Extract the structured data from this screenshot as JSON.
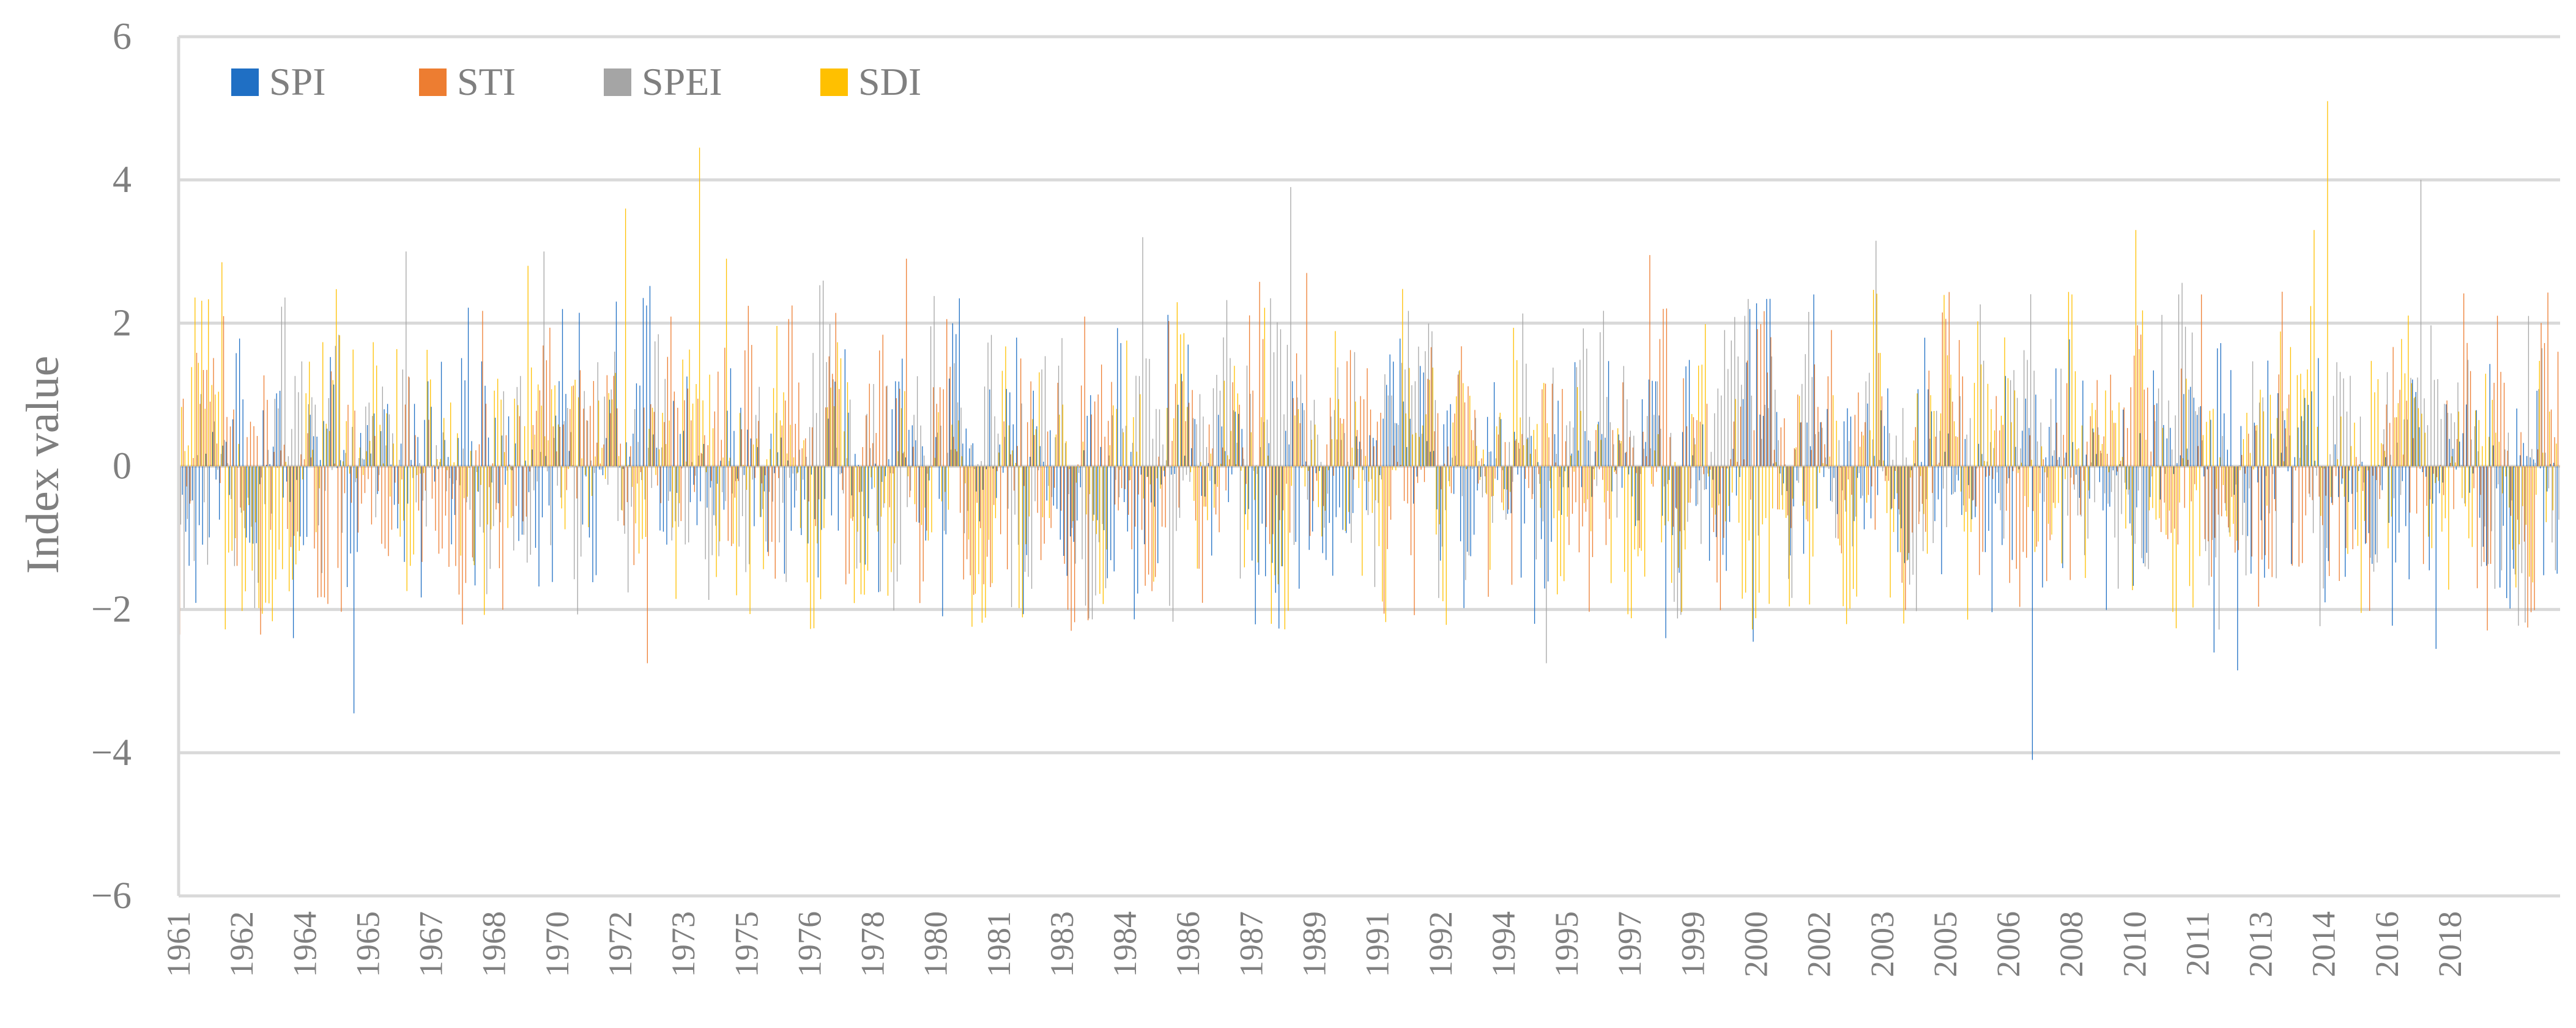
{
  "chart_data": {
    "type": "bar",
    "ylabel": "Index value",
    "ylim": [
      -6,
      6
    ],
    "yticks": [
      6,
      4,
      2,
      0,
      -2,
      -4,
      -6
    ],
    "ytick_labels": [
      "6",
      "4",
      "2",
      "0",
      "−2",
      "−4",
      "−6"
    ],
    "x_start": 1961,
    "x_end": 2020,
    "xtick_labels": [
      "1961",
      "1962",
      "1964",
      "1965",
      "1967",
      "1968",
      "1970",
      "1972",
      "1973",
      "1975",
      "1976",
      "1978",
      "1980",
      "1981",
      "1983",
      "1984",
      "1986",
      "1987",
      "1989",
      "1991",
      "1992",
      "1994",
      "1995",
      "1997",
      "1999",
      "2000",
      "2002",
      "2003",
      "2005",
      "2006",
      "2008",
      "2010",
      "2011",
      "2013",
      "2014",
      "2016",
      "2018"
    ],
    "grid": true,
    "legend_position": "top-left",
    "series": [
      {
        "name": "SPI",
        "color": "#1f6fc4",
        "notable": [
          {
            "x": 1961.0,
            "y": 1.75
          },
          {
            "x": 1965.3,
            "y": -3.45
          },
          {
            "x": 1963.8,
            "y": -2.4
          },
          {
            "x": 1971.8,
            "y": 2.3
          },
          {
            "x": 1976.0,
            "y": -1.5
          },
          {
            "x": 1986.0,
            "y": 1.7
          },
          {
            "x": 1994.6,
            "y": -2.2
          },
          {
            "x": 1997.8,
            "y": -2.4
          },
          {
            "x": 2000.0,
            "y": -2.45
          },
          {
            "x": 2001.5,
            "y": 2.4
          },
          {
            "x": 2006.9,
            "y": -4.1
          },
          {
            "x": 2011.4,
            "y": -2.6
          },
          {
            "x": 2012.0,
            "y": -2.85
          },
          {
            "x": 2014.2,
            "y": -1.9
          },
          {
            "x": 2016.9,
            "y": -2.55
          },
          {
            "x": 2020.3,
            "y": -1.5
          }
        ]
      },
      {
        "name": "STI",
        "color": "#ed7d31",
        "notable": [
          {
            "x": 1961.0,
            "y": -2.35
          },
          {
            "x": 1963.0,
            "y": -2.35
          },
          {
            "x": 1972.6,
            "y": -2.75
          },
          {
            "x": 1979.0,
            "y": 2.9
          },
          {
            "x": 1983.5,
            "y": -2.15
          },
          {
            "x": 1988.9,
            "y": 2.7
          },
          {
            "x": 1997.4,
            "y": 2.95
          },
          {
            "x": 2011.1,
            "y": 2.4
          },
          {
            "x": 2020.2,
            "y": 1.6
          }
        ]
      },
      {
        "name": "SPEI",
        "color": "#a5a5a5",
        "notable": [
          {
            "x": 1966.6,
            "y": 3.0
          },
          {
            "x": 1970.0,
            "y": 3.0
          },
          {
            "x": 1984.8,
            "y": 3.2
          },
          {
            "x": 1988.5,
            "y": 3.9
          },
          {
            "x": 1994.8,
            "y": -2.75
          },
          {
            "x": 2003.0,
            "y": 3.15
          },
          {
            "x": 2016.5,
            "y": 4.0
          },
          {
            "x": 2019.2,
            "y": 2.1
          }
        ]
      },
      {
        "name": "SDI",
        "color": "#ffc000",
        "notable": [
          {
            "x": 1962.0,
            "y": 2.85
          },
          {
            "x": 1969.6,
            "y": 2.8
          },
          {
            "x": 1972.0,
            "y": 3.6
          },
          {
            "x": 1973.8,
            "y": 4.45
          },
          {
            "x": 1974.5,
            "y": 2.9
          },
          {
            "x": 1988.0,
            "y": -2.2
          },
          {
            "x": 2009.4,
            "y": 3.3
          },
          {
            "x": 2013.8,
            "y": 3.3
          },
          {
            "x": 2014.2,
            "y": 5.1
          }
        ]
      }
    ],
    "note": "Monthly index values 1961–2020 (about 720 per series); only the most prominent spikes were read individually."
  }
}
